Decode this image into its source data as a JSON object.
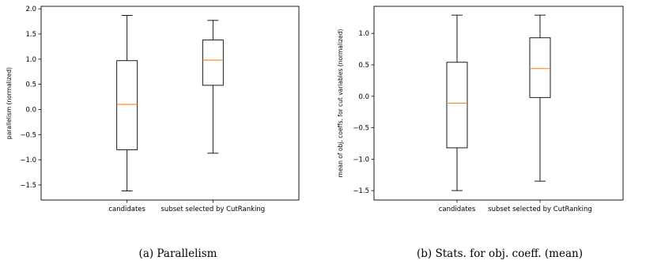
{
  "chart_data": [
    {
      "type": "box",
      "title": "",
      "xlabel": "",
      "ylabel": "parallelism (normalized)",
      "caption": "(a) Parallelism",
      "ylim": [
        -1.8,
        2.05
      ],
      "yticks": [
        -1.5,
        -1.0,
        -0.5,
        0.0,
        0.5,
        1.0,
        1.5,
        2.0
      ],
      "ytick_labels": [
        "−1.5",
        "−1.0",
        "−0.5",
        "0.0",
        "0.5",
        "1.0",
        "1.5",
        "2.0"
      ],
      "categories": [
        "candidates",
        "subset selected by CutRanking"
      ],
      "boxes": [
        {
          "whisker_low": -1.62,
          "q1": -0.8,
          "median": 0.1,
          "q3": 0.97,
          "whisker_high": 1.87
        },
        {
          "whisker_low": -0.87,
          "q1": 0.48,
          "median": 0.98,
          "q3": 1.38,
          "whisker_high": 1.77
        }
      ],
      "colors": {
        "box": "#000000",
        "median": "#ff7f0e"
      }
    },
    {
      "type": "box",
      "title": "",
      "xlabel": "",
      "ylabel": "mean of obj. coeffs. for cut variables (normalized)",
      "caption": "(b) Stats. for obj. coeff. (mean)",
      "ylim": [
        -1.65,
        1.43
      ],
      "yticks": [
        -1.5,
        -1.0,
        -0.5,
        0.0,
        0.5,
        1.0
      ],
      "ytick_labels": [
        "−1.5",
        "−1.0",
        "−0.5",
        "0.0",
        "0.5",
        "1.0"
      ],
      "categories": [
        "candidates",
        "subset selected by CutRanking"
      ],
      "boxes": [
        {
          "whisker_low": -1.5,
          "q1": -0.82,
          "median": -0.11,
          "q3": 0.54,
          "whisker_high": 1.29
        },
        {
          "whisker_low": -1.35,
          "q1": -0.02,
          "median": 0.44,
          "q3": 0.93,
          "whisker_high": 1.29
        }
      ],
      "colors": {
        "box": "#000000",
        "median": "#ff7f0e"
      }
    }
  ]
}
